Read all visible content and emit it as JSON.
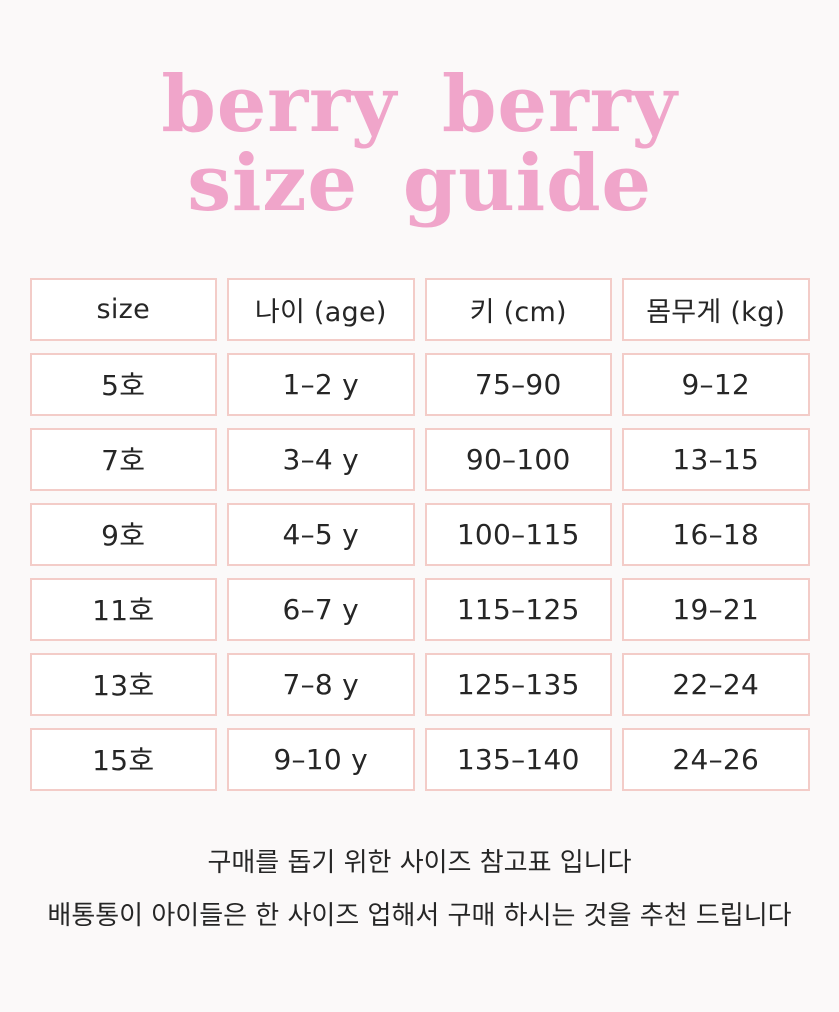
{
  "title": {
    "line1": "berry berry",
    "line2": "size guide"
  },
  "table": {
    "headers": [
      "size",
      "나이 (age)",
      "키 (cm)",
      "몸무게 (kg)"
    ],
    "rows": [
      {
        "size": "5호",
        "age": "1–2 y",
        "height": "75–90",
        "weight": "9–12"
      },
      {
        "size": "7호",
        "age": "3–4 y",
        "height": "90–100",
        "weight": "13–15"
      },
      {
        "size": "9호",
        "age": "4–5 y",
        "height": "100–115",
        "weight": "16–18"
      },
      {
        "size": "11호",
        "age": "6–7 y",
        "height": "115–125",
        "weight": "19–21"
      },
      {
        "size": "13호",
        "age": "7–8 y",
        "height": "125–135",
        "weight": "22–24"
      },
      {
        "size": "15호",
        "age": "9–10 y",
        "height": "135–140",
        "weight": "24–26"
      }
    ]
  },
  "footer": {
    "line1": "구매를 돕기 위한 사이즈 참고표 입니다",
    "line2": "배통통이 아이들은 한 사이즈 업해서 구매 하시는 것을 추천 드립니다"
  },
  "colors": {
    "title_pink": "#f0a5ca",
    "cell_border_pink": "#f3ccc8",
    "text": "#262626",
    "cell_background": "#ffffff",
    "page_background": "#fbf9f9"
  }
}
